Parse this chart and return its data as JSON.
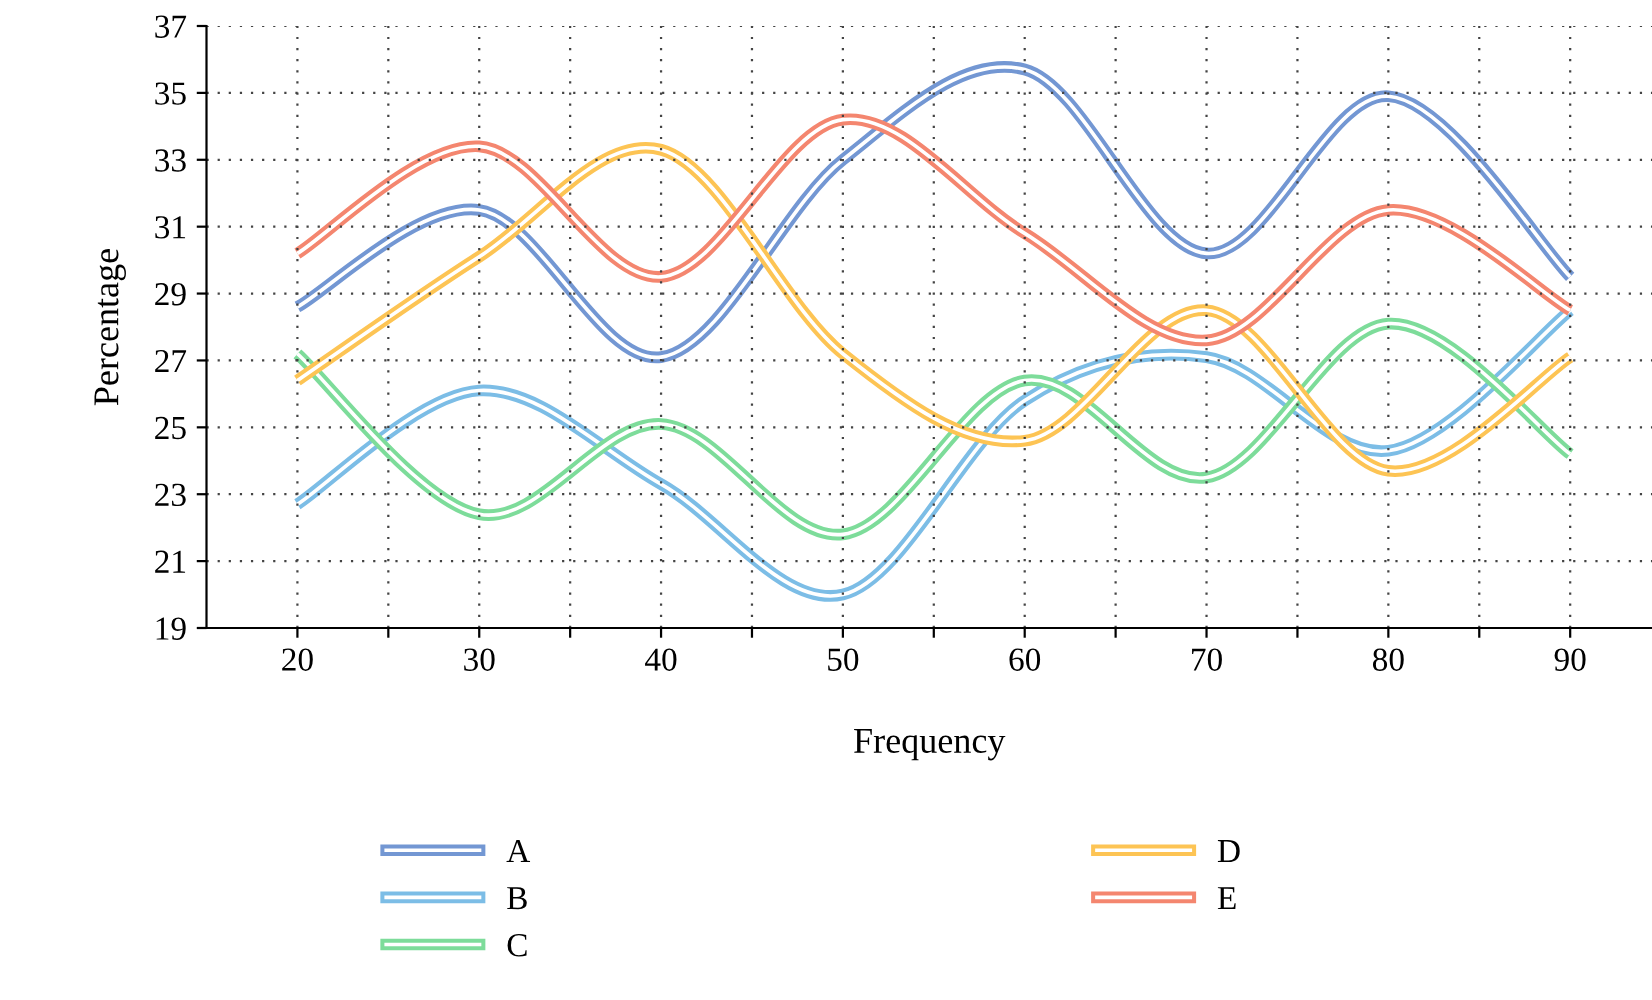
{
  "chart_data": {
    "type": "line",
    "xlabel": "Frequency",
    "ylabel": "Percentage",
    "x": [
      20,
      30,
      40,
      50,
      60,
      70,
      80,
      90
    ],
    "series": [
      {
        "name": "A",
        "color": "#7397d3",
        "values": [
          28.6,
          31.5,
          27.1,
          33.0,
          35.7,
          30.2,
          34.9,
          29.5
        ]
      },
      {
        "name": "B",
        "color": "#7cbde6",
        "values": [
          22.7,
          26.1,
          23.3,
          20.0,
          25.8,
          27.1,
          24.3,
          28.5
        ]
      },
      {
        "name": "C",
        "color": "#7ddc9a",
        "values": [
          27.2,
          22.4,
          25.1,
          21.8,
          26.4,
          23.5,
          28.1,
          24.2
        ]
      },
      {
        "name": "D",
        "color": "#fdc454",
        "values": [
          26.4,
          30.1,
          33.3,
          27.2,
          24.6,
          28.5,
          23.7,
          27.1
        ]
      },
      {
        "name": "E",
        "color": "#f4866f",
        "values": [
          30.2,
          33.4,
          29.5,
          34.2,
          30.8,
          27.6,
          31.5,
          28.5
        ]
      }
    ],
    "xlim": [
      15,
      94.5
    ],
    "ylim": [
      19,
      37
    ],
    "xticks": [
      20,
      {
        "value": 25,
        "label": null
      },
      30,
      {
        "value": 35,
        "label": null
      },
      40,
      {
        "value": 45,
        "label": null
      },
      50,
      {
        "value": 55,
        "label": null
      },
      60,
      {
        "value": 65,
        "label": null
      },
      70,
      {
        "value": 75,
        "label": null
      },
      80,
      {
        "value": 85,
        "label": null
      },
      90
    ],
    "yticks": [
      19,
      21,
      23,
      25,
      27,
      29,
      31,
      33,
      35,
      37
    ],
    "grid": true,
    "legend": "bottom",
    "marker": "none",
    "line_style": "solid"
  }
}
